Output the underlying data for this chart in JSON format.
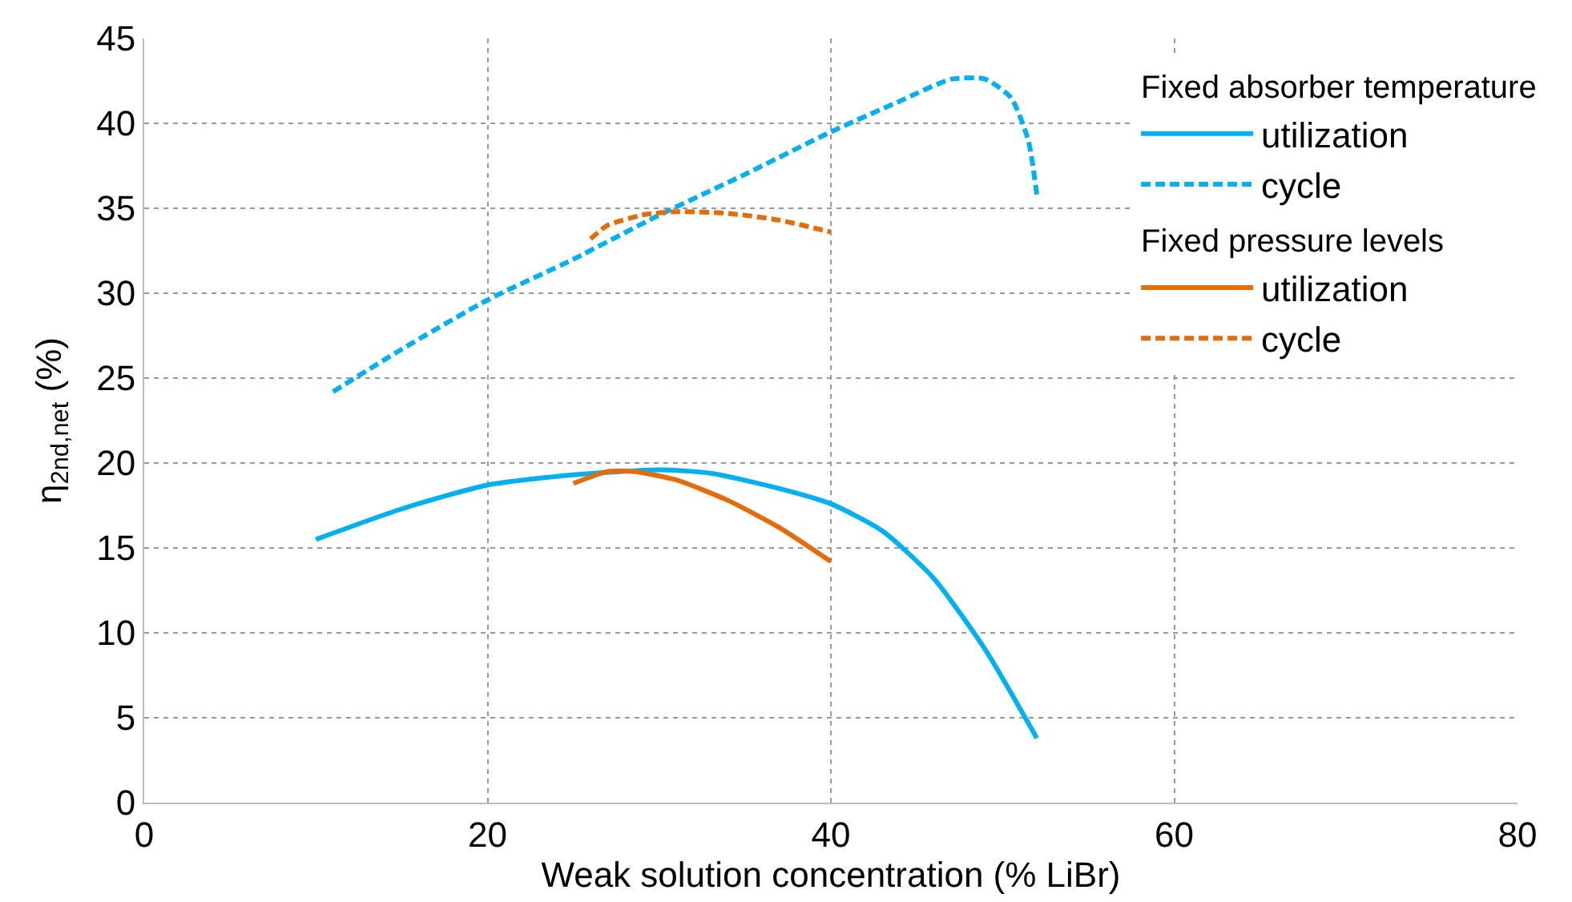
{
  "chart_data": {
    "type": "line",
    "xlabel": "Weak solution concentration (% LiBr)",
    "ylabel": "η$_{2nd,net}$ (%)",
    "xlim": [
      0,
      80
    ],
    "xticks": [
      0,
      20,
      40,
      60,
      80
    ],
    "ylim": [
      0,
      45
    ],
    "yticks": [
      0,
      5,
      10,
      15,
      20,
      25,
      30,
      35,
      40,
      45
    ],
    "grid": true,
    "legend": "right",
    "annotations": [
      "Fixed absorber temperature",
      "Fixed pressure levels"
    ],
    "series": [
      {
        "name": "utilization",
        "color": "#00b0f0",
        "line_style": "solid",
        "x": [
          10,
          15,
          20,
          25,
          30,
          33,
          37,
          40,
          43,
          46,
          49,
          52
        ],
        "values": [
          15.5,
          17.3,
          18.7,
          19.3,
          19.6,
          19.4,
          18.5,
          17.6,
          16.0,
          13.2,
          9.0,
          3.8
        ]
      },
      {
        "name": "cycle",
        "color": "#00b0f0",
        "line_style": "dashed",
        "x": [
          11,
          15,
          20,
          25,
          30,
          35,
          40,
          44,
          47,
          49,
          50.5,
          51.5,
          52
        ],
        "values": [
          24.2,
          26.7,
          29.6,
          32.0,
          34.6,
          37.0,
          39.5,
          41.3,
          42.6,
          42.6,
          41.5,
          39.0,
          35.8
        ]
      },
      {
        "name": "utilization",
        "color": "#e46c0a",
        "line_style": "solid",
        "x": [
          25,
          27,
          28.5,
          31,
          34,
          37,
          40
        ],
        "values": [
          18.8,
          19.5,
          19.5,
          19.0,
          17.8,
          16.2,
          14.2
        ]
      },
      {
        "name": "cycle",
        "color": "#e46c0a",
        "line_style": "dashed",
        "x": [
          26,
          27,
          29,
          31,
          34,
          37,
          40
        ],
        "values": [
          33.2,
          34.0,
          34.6,
          34.8,
          34.7,
          34.3,
          33.6
        ]
      }
    ]
  }
}
